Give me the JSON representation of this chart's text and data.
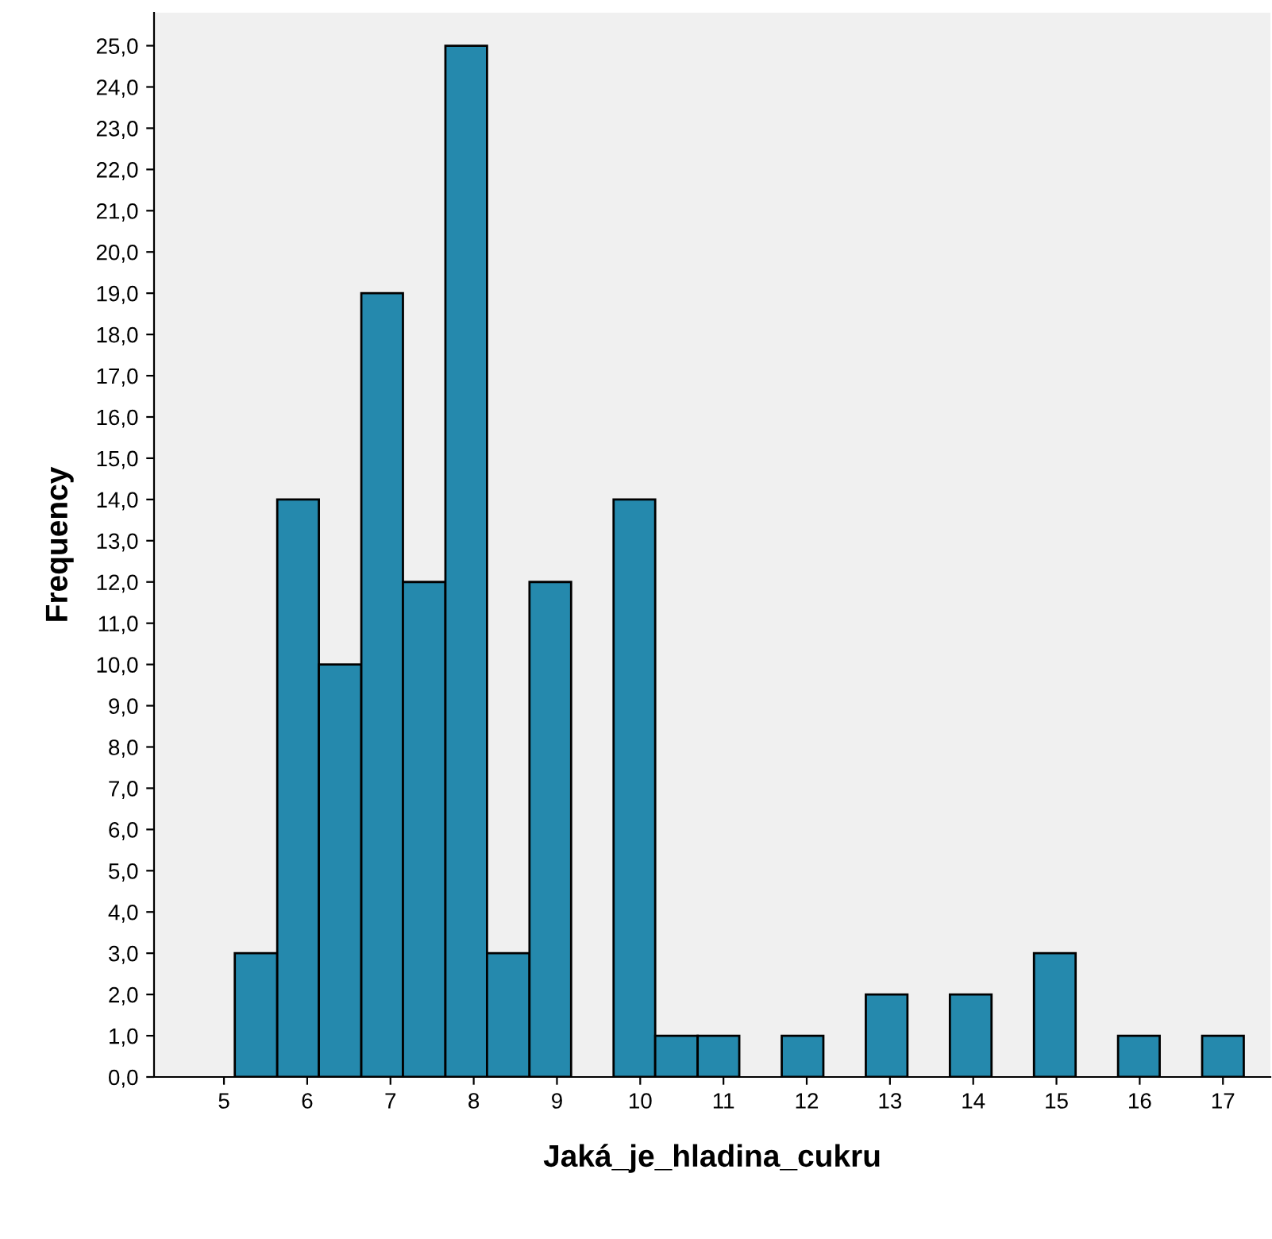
{
  "chart_data": {
    "type": "histogram",
    "xlabel": "Jaká_je_hladina_cukru",
    "ylabel": "Frequency",
    "bins": [
      5.13,
      5.64,
      6.14,
      6.65,
      7.15,
      7.66,
      8.16,
      8.67,
      9.17,
      9.68,
      10.18,
      10.69,
      11.19,
      11.7,
      12.2,
      12.71,
      13.21,
      13.72,
      14.22,
      14.73,
      15.23,
      15.74,
      16.24,
      16.75,
      17.25
    ],
    "values": [
      3,
      14,
      10,
      19,
      12,
      25,
      3,
      12,
      0,
      14,
      1,
      1,
      0,
      1,
      0,
      2,
      0,
      2,
      0,
      3,
      0,
      1,
      0,
      1
    ],
    "color": "#2589ad",
    "xlim": [
      4.16,
      17.57
    ],
    "xticks": [
      5,
      6,
      7,
      8,
      9,
      10,
      11,
      12,
      13,
      14,
      15,
      16,
      17
    ],
    "ylim": [
      0,
      25.8
    ],
    "yticks": [
      {
        "value": 0,
        "label": "0,0"
      },
      {
        "value": 1,
        "label": "1,0"
      },
      {
        "value": 2,
        "label": "2,0"
      },
      {
        "value": 3,
        "label": "3,0"
      },
      {
        "value": 4,
        "label": "4,0"
      },
      {
        "value": 5,
        "label": "5,0"
      },
      {
        "value": 6,
        "label": "6,0"
      },
      {
        "value": 7,
        "label": "7,0"
      },
      {
        "value": 8,
        "label": "8,0"
      },
      {
        "value": 9,
        "label": "9,0"
      },
      {
        "value": 10,
        "label": "10,0"
      },
      {
        "value": 11,
        "label": "11,0"
      },
      {
        "value": 12,
        "label": "12,0"
      },
      {
        "value": 13,
        "label": "13,0"
      },
      {
        "value": 14,
        "label": "14,0"
      },
      {
        "value": 15,
        "label": "15,0"
      },
      {
        "value": 16,
        "label": "16,0"
      },
      {
        "value": 17,
        "label": "17,0"
      },
      {
        "value": 18,
        "label": "18,0"
      },
      {
        "value": 19,
        "label": "19,0"
      },
      {
        "value": 20,
        "label": "20,0"
      },
      {
        "value": 21,
        "label": "21,0"
      },
      {
        "value": 22,
        "label": "22,0"
      },
      {
        "value": 23,
        "label": "23,0"
      },
      {
        "value": 24,
        "label": "24,0"
      },
      {
        "value": 25,
        "label": "25,0"
      }
    ],
    "grid": false
  }
}
